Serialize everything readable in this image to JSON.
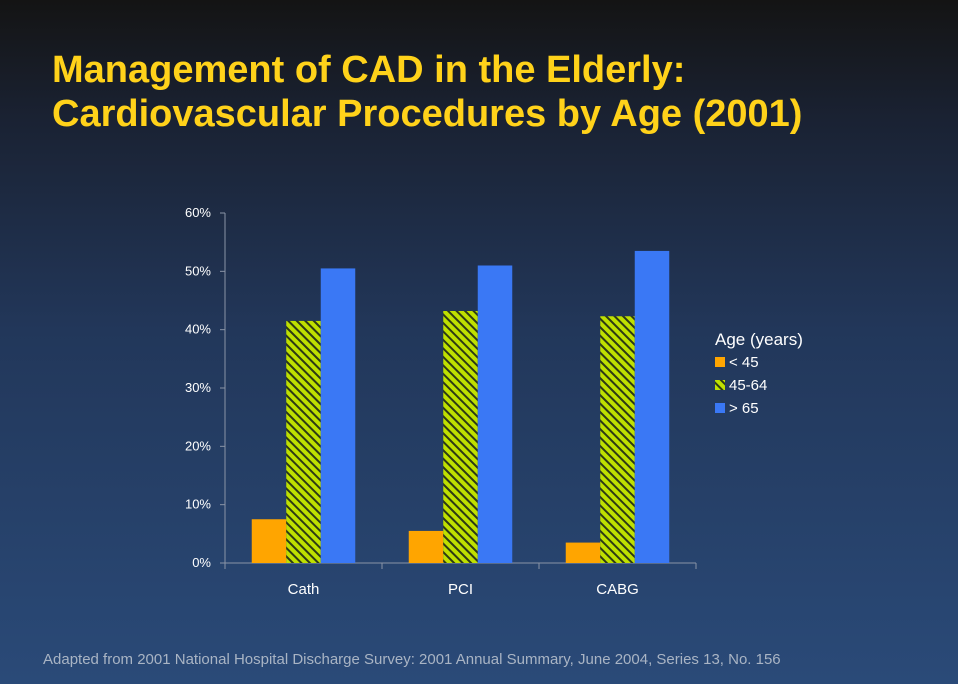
{
  "slide": {
    "title_line1": "Management of CAD in the Elderly:",
    "title_line2": "Cardiovascular Procedures by Age (2001)",
    "footnote": "Adapted from 2001 National Hospital Discharge Survey: 2001 Annual Summary, June 2004, Series 13, No. 156"
  },
  "chart_data": {
    "type": "bar",
    "title": "",
    "xlabel": "",
    "ylabel": "",
    "categories": [
      "Cath",
      "PCI",
      "CABG"
    ],
    "ylim": [
      0,
      60
    ],
    "yticks": [
      0,
      10,
      20,
      30,
      40,
      50,
      60
    ],
    "ytick_labels": [
      "0%",
      "10%",
      "20%",
      "30%",
      "40%",
      "50%",
      "60%"
    ],
    "grid": false,
    "legend": {
      "title": "Age (years)",
      "placement": "right"
    },
    "series": [
      {
        "name": "< 45",
        "values": [
          7.5,
          5.5,
          3.5
        ],
        "color": "#ffa500",
        "pattern": "solid"
      },
      {
        "name": "45-64",
        "values": [
          41.5,
          43.2,
          42.3
        ],
        "color": "#bfe000",
        "pattern": "diagonal-hatch"
      },
      {
        "name": "> 65",
        "values": [
          50.5,
          51.0,
          53.5
        ],
        "color": "#3a78f5",
        "pattern": "solid"
      }
    ]
  }
}
